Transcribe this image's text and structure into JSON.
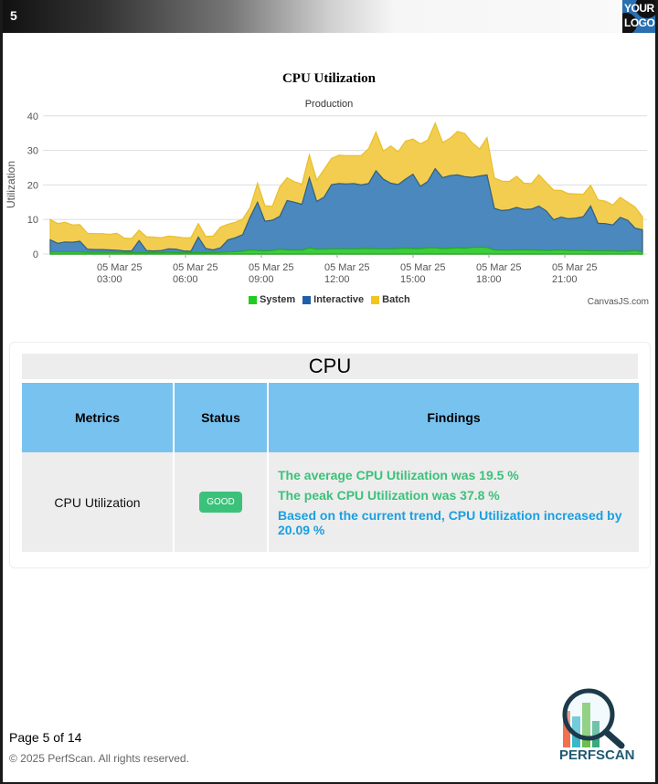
{
  "header": {
    "page_number": "5",
    "logo_line1": "YOUR",
    "logo_line2": "LOGO"
  },
  "chart": {
    "title": "CPU Utilization",
    "subtitle": "Production",
    "ylabel": "Utilization",
    "credit": "CanvasJS.com",
    "legend": [
      {
        "label": "System",
        "color": "#22cc22"
      },
      {
        "label": "Interactive",
        "color": "#1f5faa"
      },
      {
        "label": "Batch",
        "color": "#f2c51c"
      }
    ]
  },
  "chart_data": {
    "type": "area",
    "stacked": true,
    "title": "CPU Utilization",
    "subtitle": "Production",
    "xlabel": "",
    "ylabel": "Utilization",
    "ylim": [
      0,
      40
    ],
    "yticks": [
      0,
      10,
      20,
      30,
      40
    ],
    "xticks": [
      "05 Mar 25 03:00",
      "05 Mar 25 06:00",
      "05 Mar 25 09:00",
      "05 Mar 25 12:00",
      "05 Mar 25 15:00",
      "05 Mar 25 18:00",
      "05 Mar 25 21:00"
    ],
    "grid": true,
    "legend_position": "bottom",
    "x_start_hour": 0.7,
    "x_step_hours": 0.3,
    "series": [
      {
        "name": "System",
        "color": "#22cc22",
        "values": [
          0.6,
          0.6,
          0.6,
          0.6,
          0.6,
          0.5,
          0.5,
          0.5,
          0.5,
          0.5,
          0.4,
          0.4,
          0.4,
          0.4,
          0.4,
          0.4,
          0.5,
          0.4,
          0.4,
          0.4,
          0.4,
          0.4,
          0.4,
          0.5,
          0.6,
          0.7,
          0.8,
          1.2,
          1.0,
          0.9,
          1.0,
          1.4,
          1.2,
          1.2,
          1.1,
          1.8,
          1.4,
          1.4,
          1.5,
          1.5,
          1.5,
          1.5,
          1.6,
          1.6,
          1.5,
          1.5,
          1.5,
          1.6,
          1.7,
          1.6,
          1.6,
          1.8,
          1.8,
          1.6,
          1.7,
          1.8,
          1.7,
          1.9,
          2.0,
          1.9,
          1.2,
          1.1,
          1.1,
          1.2,
          1.2,
          1.2,
          1.1,
          1.0,
          1.1,
          1.2,
          1.0,
          1.0,
          1.0,
          0.9,
          0.9,
          0.9,
          0.9,
          0.8,
          0.8,
          1.0,
          0.6
        ]
      },
      {
        "name": "Interactive",
        "values": [
          3.5,
          2.5,
          2.9,
          2.8,
          3.1,
          0.9,
          0.8,
          0.8,
          0.7,
          0.6,
          0.5,
          0.5,
          3.5,
          0.6,
          0.5,
          0.6,
          1.0,
          1.0,
          0.5,
          0.4,
          4.5,
          1.2,
          0.8,
          1.3,
          3.5,
          4.0,
          4.8,
          9.5,
          14.0,
          8.6,
          8.8,
          9.5,
          14.3,
          13.8,
          13.3,
          20.3,
          13.8,
          15.1,
          18.6,
          18.9,
          18.8,
          18.9,
          18.4,
          18.8,
          22.6,
          20.2,
          19.0,
          18.5,
          20.0,
          21.5,
          18.0,
          19.2,
          22.9,
          20.5,
          21.0,
          21.1,
          20.7,
          20.3,
          20.6,
          21.0,
          12.0,
          11.5,
          11.7,
          12.3,
          11.7,
          11.8,
          12.8,
          11.5,
          8.8,
          9.5,
          9.2,
          9.4,
          9.8,
          13.0,
          8.0,
          7.9,
          7.5,
          9.8,
          9.0,
          6.5,
          6.4
        ]
      },
      {
        "name": "Batch",
        "color": "#f2c51c",
        "values": [
          5.9,
          5.7,
          5.7,
          5.0,
          4.8,
          4.6,
          4.6,
          4.6,
          4.5,
          4.9,
          3.7,
          3.6,
          3.0,
          4.0,
          4.0,
          3.7,
          3.7,
          3.6,
          3.8,
          3.9,
          3.9,
          3.5,
          4.0,
          6.0,
          4.5,
          4.5,
          4.5,
          2.8,
          5.5,
          4.5,
          4.0,
          8.5,
          6.6,
          5.9,
          5.8,
          6.6,
          6.2,
          8.0,
          7.6,
          8.2,
          8.2,
          8.1,
          8.5,
          10.1,
          11.2,
          8.1,
          10.8,
          9.5,
          11.0,
          10.2,
          12.3,
          12.0,
          13.2,
          10.2,
          10.8,
          12.6,
          12.5,
          10.0,
          7.8,
          10.8,
          8.8,
          8.5,
          8.2,
          9.0,
          7.6,
          7.4,
          9.1,
          8.2,
          8.6,
          7.7,
          7.3,
          7.0,
          6.5,
          6.0,
          6.8,
          6.5,
          5.8,
          5.8,
          5.2,
          6.1,
          3.8
        ]
      }
    ]
  },
  "table": {
    "title": "CPU",
    "headers": [
      "Metrics",
      "Status",
      "Findings"
    ],
    "row": {
      "metric": "CPU Utilization",
      "status": "GOOD",
      "findings": [
        "The average CPU Utilization was 19.5 %",
        "The peak CPU Utilization was 37.8 %",
        "Based on the current trend, CPU Utilization increased by 20.09 %"
      ]
    }
  },
  "footer": {
    "page": "Page 5 of 14",
    "copyright": "© 2025 PerfScan. All rights reserved.",
    "brand": "PERFSCAN"
  }
}
